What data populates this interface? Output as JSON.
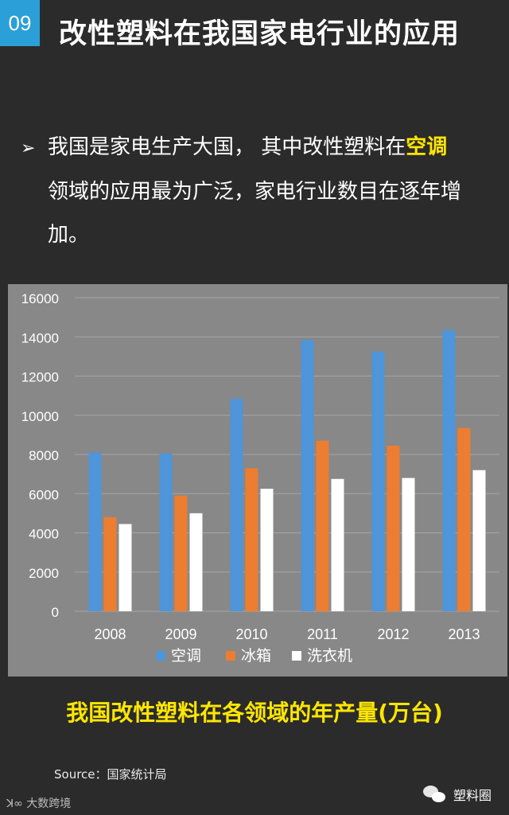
{
  "header": {
    "number": "09",
    "title": "改性塑料在我国家电行业的应用"
  },
  "bullet": {
    "line1_a": "我国是家电生产大国，  其中改性塑料在",
    "line1_hl": "空调",
    "line2": "领域的应用最为广泛，家电行业数目在逐年增",
    "line3": "加。"
  },
  "chart_data": {
    "type": "bar",
    "categories": [
      "2008",
      "2009",
      "2010",
      "2011",
      "2012",
      "2013"
    ],
    "series": [
      {
        "name": "空调",
        "color": "#4e95d9",
        "values": [
          8100,
          8050,
          10850,
          13850,
          13250,
          14350
        ]
      },
      {
        "name": "冰箱",
        "color": "#ed7d31",
        "values": [
          4800,
          5900,
          7300,
          8700,
          8450,
          9350
        ]
      },
      {
        "name": "洗衣机",
        "color": "#ffffff",
        "values": [
          4450,
          5000,
          6250,
          6750,
          6800,
          7200
        ]
      }
    ],
    "ylim": [
      0,
      16000
    ],
    "yticks": [
      "0",
      "2000",
      "4000",
      "6000",
      "8000",
      "10000",
      "12000",
      "14000",
      "16000"
    ],
    "grid": true,
    "legend": "bottom"
  },
  "caption": "我国改性塑料在各领域的年产量(万台)",
  "source": "Source：国家统计局",
  "watermark_left": "大数跨境",
  "watermark_right": "塑料圈"
}
